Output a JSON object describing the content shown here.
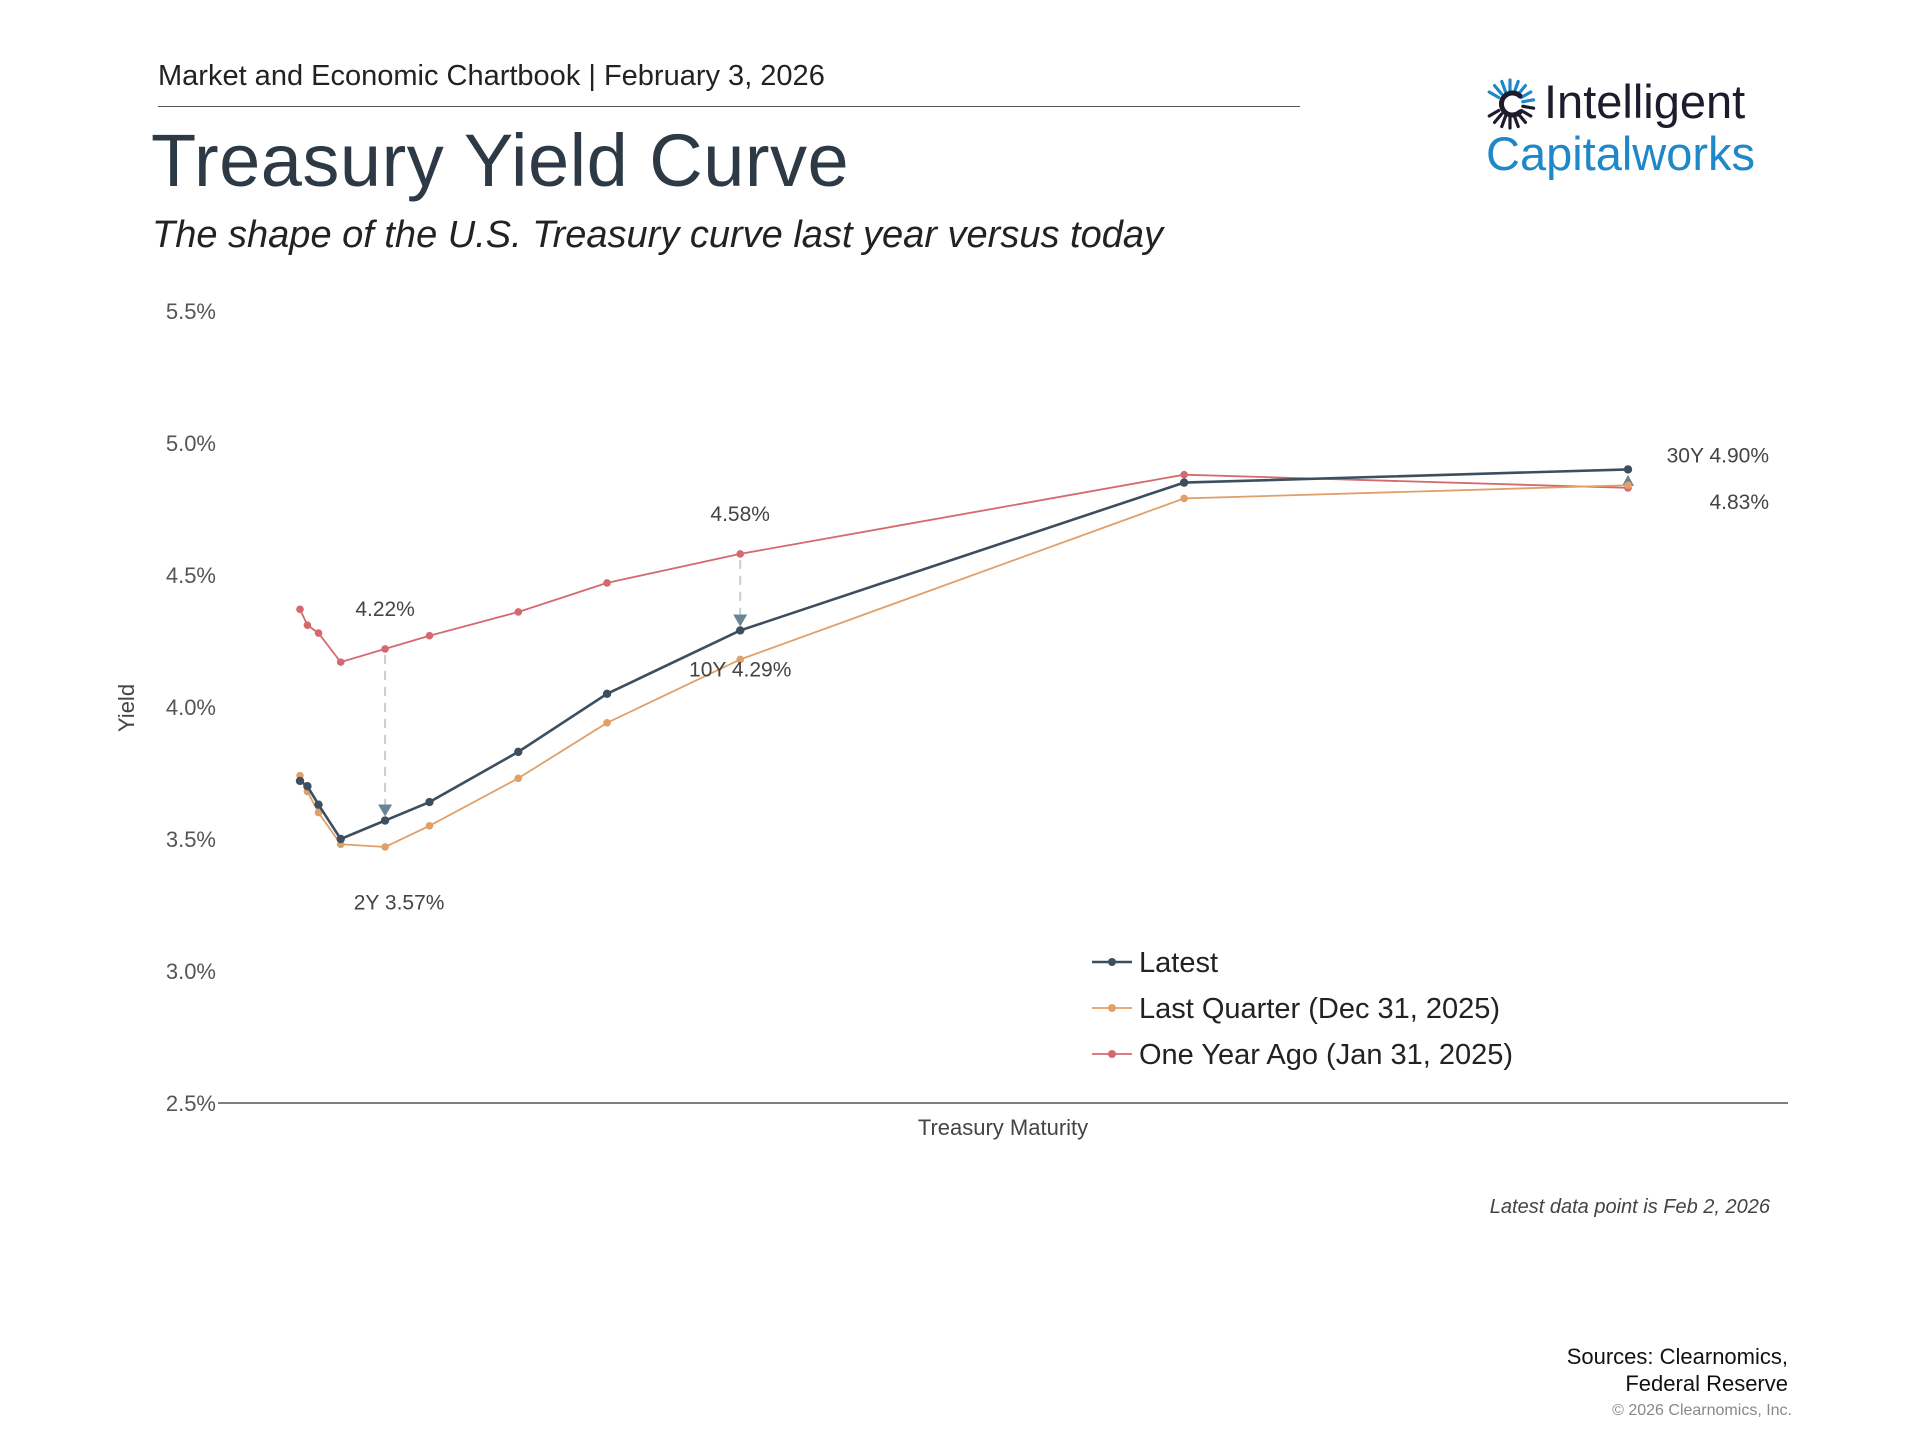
{
  "header": {
    "chartbook": "Market and Economic Chartbook | February 3, 2026",
    "title": "Treasury Yield Curve",
    "subtitle": "The shape of the U.S. Treasury curve last year versus today"
  },
  "logo": {
    "line1": "Intelligent",
    "line2": "Capitalworks",
    "colors": {
      "dark": "#1c1c2c",
      "blue": "#1f88c8"
    }
  },
  "chart_data": {
    "type": "line",
    "title": "Treasury Yield Curve",
    "subtitle": "The shape of the U.S. Treasury curve last year versus today",
    "xlabel": "Treasury Maturity",
    "ylabel": "Yield",
    "ylim": [
      2.5,
      5.5
    ],
    "yticks": [
      "5.5%",
      "5.0%",
      "4.5%",
      "4.0%",
      "3.5%",
      "3.0%",
      "2.5%"
    ],
    "ytick_values": [
      5.5,
      5.0,
      4.5,
      4.0,
      3.5,
      3.0,
      2.5
    ],
    "x_unit": "years to maturity",
    "xlim": [
      0,
      32
    ],
    "x": [
      0.083,
      0.25,
      0.5,
      1,
      2,
      3,
      5,
      7,
      10,
      20,
      30
    ],
    "grid": false,
    "legend_position": "bottom-right",
    "series": [
      {
        "name": "Latest",
        "color": "#3d4f5f",
        "values": [
          3.72,
          3.7,
          3.63,
          3.5,
          3.57,
          3.64,
          3.83,
          4.05,
          4.29,
          4.85,
          4.9
        ]
      },
      {
        "name": "Last Quarter (Dec 31, 2025)",
        "color": "#e0a06a",
        "values": [
          3.74,
          3.68,
          3.6,
          3.48,
          3.47,
          3.55,
          3.73,
          3.94,
          4.18,
          4.79,
          4.84
        ]
      },
      {
        "name": "One Year Ago (Jan 31, 2025)",
        "color": "#d46a6e",
        "values": [
          4.37,
          4.31,
          4.28,
          4.17,
          4.22,
          4.27,
          4.36,
          4.47,
          4.58,
          4.88,
          4.83
        ]
      }
    ],
    "annotations": [
      {
        "text": "4.22%",
        "x": 2,
        "y": 4.22,
        "series": "One Year Ago (Jan 31, 2025)",
        "placement": "above"
      },
      {
        "text": "2Y 3.57%",
        "x": 2,
        "y": 3.57,
        "series": "Latest",
        "placement": "below"
      },
      {
        "text": "4.58%",
        "x": 10,
        "y": 4.58,
        "series": "One Year Ago (Jan 31, 2025)",
        "placement": "above"
      },
      {
        "text": "10Y 4.29%",
        "x": 10,
        "y": 4.29,
        "series": "Latest",
        "placement": "below"
      },
      {
        "text": "30Y 4.90%",
        "x": 30,
        "y": 4.9,
        "series": "Latest",
        "placement": "right"
      },
      {
        "text": "4.83%",
        "x": 30,
        "y": 4.83,
        "series": "One Year Ago (Jan 31, 2025)",
        "placement": "right"
      }
    ],
    "change_arrows": [
      {
        "x": 2,
        "from": 4.22,
        "to": 3.57,
        "direction": "down"
      },
      {
        "x": 10,
        "from": 4.58,
        "to": 4.29,
        "direction": "down"
      },
      {
        "x": 30,
        "from": 4.83,
        "to": 4.9,
        "direction": "up"
      }
    ],
    "arrow_color": "#6b8494"
  },
  "footer": {
    "latest_note": "Latest data point is Feb 2, 2026",
    "sources": [
      "Sources: Clearnomics,",
      "Federal Reserve"
    ],
    "copyright": "© 2026 Clearnomics, Inc."
  }
}
